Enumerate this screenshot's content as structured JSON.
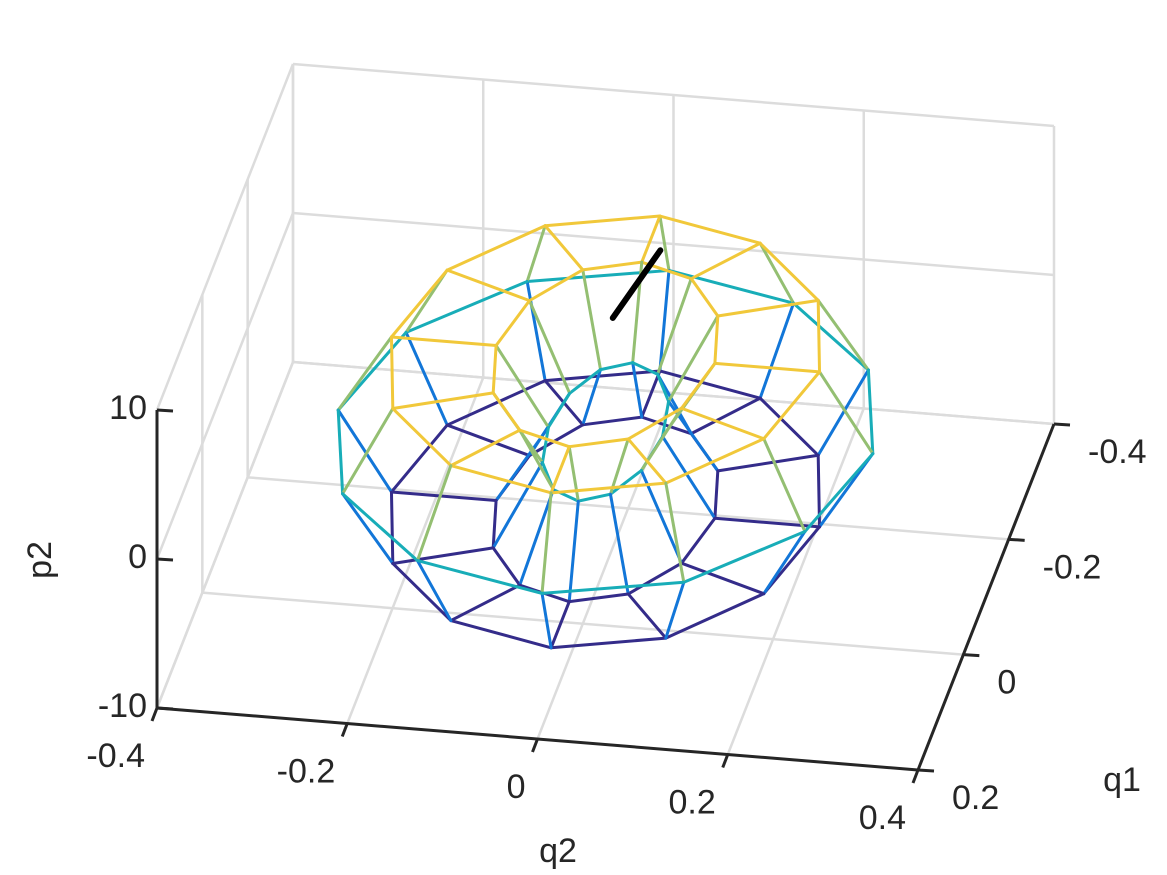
{
  "chart_data": {
    "type": "surface3d",
    "xlabel": "q2",
    "ylabel": "q1",
    "zlabel": "p2",
    "xlim": [
      -0.4,
      0.4
    ],
    "xticks": [
      -0.4,
      -0.2,
      0,
      0.2,
      0.4
    ],
    "ylim": [
      -0.4,
      0.2
    ],
    "yticks": [
      -0.4,
      -0.2,
      0,
      0.2
    ],
    "ydir": "reverse",
    "zlim": [
      -10,
      10
    ],
    "zticks": [
      -10,
      0,
      10
    ],
    "grid": true,
    "colormap": "parula",
    "surface": {
      "q2": [
        [
          0.281,
          0.225,
          0.115,
          0.06,
          0.115,
          0.225
        ],
        [
          0.243,
          0.195,
          0.099,
          0.052,
          0.099,
          0.195
        ],
        [
          0.14,
          0.113,
          0.057,
          0.03,
          0.057,
          0.113
        ],
        [
          0,
          0,
          0,
          0,
          0,
          0
        ],
        [
          -0.14,
          -0.113,
          -0.057,
          -0.03,
          -0.057,
          -0.113
        ],
        [
          -0.243,
          -0.195,
          -0.099,
          -0.052,
          -0.099,
          -0.195
        ],
        [
          -0.281,
          -0.225,
          -0.115,
          -0.06,
          -0.115,
          -0.225
        ],
        [
          -0.243,
          -0.195,
          -0.099,
          -0.052,
          -0.099,
          -0.195
        ],
        [
          -0.14,
          -0.113,
          -0.057,
          -0.03,
          -0.057,
          -0.113
        ],
        [
          0,
          0,
          0,
          0,
          0,
          0
        ],
        [
          0.14,
          0.113,
          0.057,
          0.03,
          0.057,
          0.113
        ],
        [
          0.243,
          0.195,
          0.099,
          0.052,
          0.099,
          0.195
        ]
      ],
      "q1": [
        [
          -0.1,
          -0.1,
          -0.1,
          -0.1,
          -0.1,
          -0.1
        ],
        [
          0.04,
          0.02,
          -0.02,
          -0.04,
          -0.02,
          0.02
        ],
        [
          0.142,
          0.108,
          0.039,
          0.004,
          0.039,
          0.108
        ],
        [
          0.18,
          0.14,
          0.06,
          0.02,
          0.06,
          0.14
        ],
        [
          0.142,
          0.108,
          0.039,
          0.004,
          0.039,
          0.108
        ],
        [
          0.04,
          0.02,
          -0.02,
          -0.04,
          -0.02,
          0.02
        ],
        [
          -0.1,
          -0.1,
          -0.1,
          -0.1,
          -0.1,
          -0.1
        ],
        [
          -0.24,
          -0.22,
          -0.18,
          -0.16,
          -0.18,
          -0.22
        ],
        [
          -0.342,
          -0.308,
          -0.239,
          -0.204,
          -0.239,
          -0.308
        ],
        [
          -0.38,
          -0.34,
          -0.26,
          -0.22,
          -0.26,
          -0.34
        ],
        [
          -0.342,
          -0.308,
          -0.239,
          -0.204,
          -0.239,
          -0.308
        ],
        [
          -0.24,
          -0.22,
          -0.18,
          -0.16,
          -0.18,
          -0.22
        ]
      ],
      "p2": [
        [
          -1,
          4.2,
          4.2,
          -1,
          -6.2,
          -6.2
        ],
        [
          -1,
          4.2,
          4.2,
          -1,
          -6.2,
          -6.2
        ],
        [
          -1,
          4.2,
          4.2,
          -1,
          -6.2,
          -6.2
        ],
        [
          -1,
          4.2,
          4.2,
          -1,
          -6.2,
          -6.2
        ],
        [
          -1,
          4.2,
          4.2,
          -1,
          -6.2,
          -6.2
        ],
        [
          -1,
          4.2,
          4.2,
          -1,
          -6.2,
          -6.2
        ],
        [
          -1,
          4.2,
          4.2,
          -1,
          -6.2,
          -6.2
        ],
        [
          -1,
          4.2,
          4.2,
          -1,
          -6.2,
          -6.2
        ],
        [
          -1,
          4.2,
          4.2,
          -1,
          -6.2,
          -6.2
        ],
        [
          -1,
          4.2,
          4.2,
          -1,
          -6.2,
          -6.2
        ],
        [
          -1,
          4.2,
          4.2,
          -1,
          -6.2,
          -6.2
        ],
        [
          -1,
          4.2,
          4.2,
          -1,
          -6.2,
          -6.2
        ]
      ]
    },
    "trajectory": {
      "color": "#000000",
      "q1": [
        -0.3,
        -0.3,
        -0.3
      ],
      "q2": [
        -0.04,
        -0.015,
        0.01
      ],
      "p2": [
        -1.3,
        1.1,
        3.5
      ]
    }
  }
}
